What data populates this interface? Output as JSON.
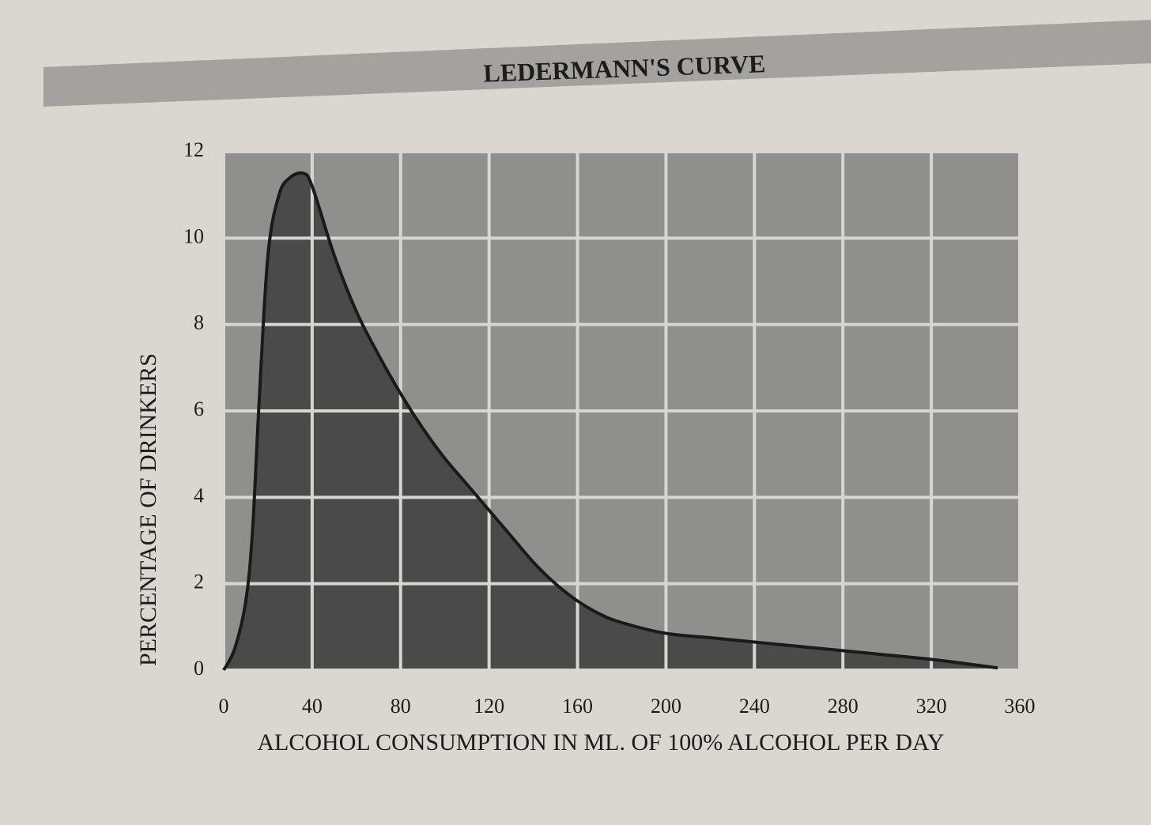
{
  "chart_data": {
    "type": "area",
    "title": "LEDERMANN'S CURVE",
    "x_label": "ALCOHOL CONSUMPTION IN ML. OF 100% ALCOHOL PER DAY",
    "y_label": "PERCENTAGE OF DRINKERS",
    "x": [
      0,
      5,
      10,
      13,
      16,
      20,
      25,
      30,
      36,
      40,
      50,
      60,
      70,
      80,
      90,
      100,
      110,
      120,
      130,
      140,
      150,
      160,
      170,
      180,
      200,
      220,
      240,
      260,
      280,
      300,
      320,
      340,
      350
    ],
    "values": [
      0,
      0.5,
      1.6,
      3.2,
      6.2,
      9.6,
      11.0,
      11.4,
      11.5,
      11.2,
      9.6,
      8.3,
      7.3,
      6.4,
      5.6,
      4.9,
      4.3,
      3.7,
      3.1,
      2.5,
      2.0,
      1.6,
      1.3,
      1.1,
      0.85,
      0.75,
      0.65,
      0.55,
      0.45,
      0.35,
      0.25,
      0.12,
      0.05
    ],
    "color": "#4a4a4a",
    "line_color": "#1a1a1a",
    "plot_color": "#8f8f8d",
    "xlim": [
      0,
      360
    ],
    "ylim": [
      0,
      12
    ],
    "xticks": [
      0,
      40,
      80,
      120,
      160,
      200,
      240,
      280,
      320,
      360
    ],
    "yticks": [
      0,
      2,
      4,
      6,
      8,
      10,
      12
    ],
    "grid": true
  }
}
